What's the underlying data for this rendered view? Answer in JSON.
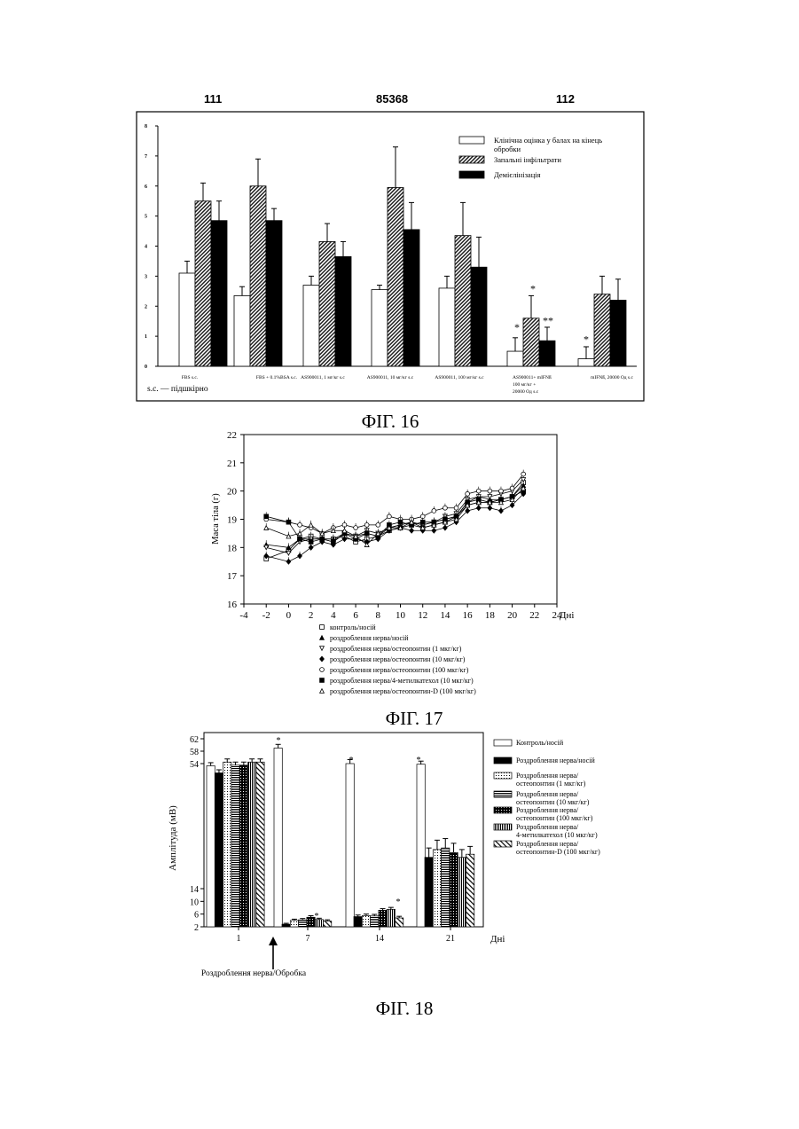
{
  "header": {
    "left_page": "111",
    "center_number": "85368",
    "right_page": "112"
  },
  "colors": {
    "ink": "#000000",
    "background": "#ffffff"
  },
  "chart_data": [
    {
      "type": "bar",
      "figure_label": "ФІГ. 16",
      "categories": [
        "FBS s.c.",
        "FBS + 0.1%BSA s.c.",
        "AS900011, 1 мг/кг s.c",
        "AS900011, 10 мг/кг s.c",
        "AS900011, 100 мг/кг s.c",
        "AS900011+ mIFNß 100 мг/кг + 20000 Од s.c",
        "mIFNß, 20000 Од s.c"
      ],
      "series": [
        {
          "name": "Клінічна оцінка у балах на кінець обробки",
          "pattern": "white",
          "values": [
            3.1,
            2.35,
            2.7,
            2.55,
            2.6,
            0.5,
            0.25
          ],
          "errors": [
            0.4,
            0.3,
            0.3,
            0.15,
            0.4,
            0.45,
            0.4
          ]
        },
        {
          "name": "Запальні інфільтрати",
          "pattern": "hatched",
          "values": [
            5.5,
            6.0,
            4.15,
            5.95,
            4.35,
            1.6,
            2.4
          ],
          "errors": [
            0.6,
            0.9,
            0.6,
            1.35,
            1.1,
            0.75,
            0.6
          ]
        },
        {
          "name": "Демієлінізація",
          "pattern": "black",
          "values": [
            4.85,
            4.85,
            3.65,
            4.55,
            3.3,
            0.85,
            2.2
          ],
          "errors": [
            0.65,
            0.4,
            0.5,
            0.9,
            1.0,
            0.45,
            0.7
          ]
        }
      ],
      "ylim": [
        0,
        8
      ],
      "yticks": [
        "0",
        "1",
        "2",
        "3",
        "4",
        "5",
        "6",
        "7",
        "8"
      ],
      "annotations": [
        "*",
        "*",
        "**",
        "*"
      ],
      "footnote": "s.c. — підшкірно",
      "legend_position": "top-right"
    },
    {
      "type": "line",
      "figure_label": "ФІГ. 17",
      "ylabel": "Маса тіла (г)",
      "xlabel": "Дні",
      "xlim": [
        -4,
        24
      ],
      "ylim": [
        16,
        22
      ],
      "xticks": [
        "-4",
        "-2",
        "0",
        "2",
        "4",
        "6",
        "8",
        "10",
        "12",
        "14",
        "16",
        "18",
        "20",
        "22",
        "24"
      ],
      "yticks": [
        "16",
        "17",
        "18",
        "19",
        "20",
        "21",
        "22"
      ],
      "x": [
        -2,
        0,
        1,
        2,
        3,
        4,
        5,
        6,
        7,
        8,
        9,
        10,
        11,
        12,
        13,
        14,
        15,
        16,
        17,
        18,
        19,
        20,
        21
      ],
      "series": [
        {
          "name": "контроль/носій",
          "marker": "open-square",
          "values": [
            17.6,
            17.9,
            18.3,
            18.4,
            18.3,
            18.3,
            18.4,
            18.2,
            18.3,
            18.4,
            18.6,
            18.7,
            18.8,
            18.7,
            18.8,
            18.9,
            19.1,
            19.5,
            19.6,
            19.6,
            19.7,
            19.8,
            20.3
          ]
        },
        {
          "name": "роздроблення нерва/носій",
          "marker": "filled-triangle",
          "values": [
            18.1,
            18.0,
            18.3,
            18.3,
            18.3,
            18.3,
            18.5,
            18.4,
            18.5,
            18.4,
            18.7,
            18.8,
            18.9,
            18.8,
            18.9,
            19.0,
            19.1,
            19.6,
            19.8,
            19.7,
            19.7,
            19.8,
            20.2
          ]
        },
        {
          "name": "роздроблення нерва/остеопонтин (1 мкг/кг)",
          "marker": "open-triangle-down",
          "values": [
            18.0,
            17.8,
            18.2,
            18.3,
            18.3,
            18.2,
            18.5,
            18.4,
            18.6,
            18.5,
            18.7,
            18.8,
            18.9,
            18.8,
            18.9,
            19.1,
            19.2,
            19.7,
            19.8,
            19.8,
            19.9,
            20.0,
            20.4
          ]
        },
        {
          "name": "роздроблення нерва/остеопонтин (10 мкг/кг)",
          "marker": "filled-diamond",
          "values": [
            17.7,
            17.5,
            17.7,
            18.0,
            18.2,
            18.1,
            18.3,
            18.3,
            18.2,
            18.3,
            18.6,
            18.7,
            18.6,
            18.6,
            18.6,
            18.7,
            18.9,
            19.3,
            19.4,
            19.4,
            19.3,
            19.5,
            19.9
          ]
        },
        {
          "name": "роздроблення нерва/остеопонтин (100 мкг/кг)",
          "marker": "open-circle",
          "values": [
            19.0,
            18.9,
            18.8,
            18.7,
            18.5,
            18.7,
            18.8,
            18.7,
            18.8,
            18.8,
            19.1,
            19.0,
            19.0,
            19.1,
            19.3,
            19.4,
            19.4,
            19.9,
            20.0,
            20.0,
            20.0,
            20.1,
            20.6
          ]
        },
        {
          "name": "роздроблення нерва/4-метилкатехол (10 мкг/кг)",
          "marker": "filled-square",
          "values": [
            19.1,
            18.9,
            18.3,
            18.2,
            18.3,
            18.2,
            18.5,
            18.3,
            18.5,
            18.4,
            18.8,
            18.9,
            18.8,
            18.9,
            18.9,
            19.0,
            19.1,
            19.6,
            19.7,
            19.6,
            19.7,
            19.8,
            20.0
          ]
        },
        {
          "name": "роздроблення нерва/остеопонтин-D (100 мкг/кг)",
          "marker": "open-triangle",
          "values": [
            18.7,
            18.4,
            18.5,
            18.8,
            18.5,
            18.6,
            18.6,
            18.4,
            18.1,
            18.5,
            18.7,
            18.7,
            18.9,
            18.7,
            18.8,
            18.9,
            19.0,
            19.5,
            19.6,
            19.6,
            19.6,
            19.7,
            20.1
          ]
        }
      ]
    },
    {
      "type": "bar",
      "figure_label": "ФІГ. 18",
      "ylabel": "Амплітуда (мВ)",
      "xlabel": "Дні",
      "categories": [
        "1",
        "7",
        "14",
        "21"
      ],
      "yticks": [
        "2",
        "6",
        "10",
        "14",
        "54",
        "58",
        "62"
      ],
      "ylim": [
        2,
        62
      ],
      "series": [
        {
          "name": "Контроль/носій",
          "pattern": "white",
          "values": [
            53.3,
            59.0,
            54.0,
            53.8
          ],
          "errors": [
            1.0,
            1.2,
            1.3,
            1.0
          ]
        },
        {
          "name": "Роздроблення нерва/носій",
          "pattern": "black",
          "values": [
            51.0,
            2.8,
            5.2,
            24.0
          ],
          "errors": [
            1.0,
            0.3,
            0.5,
            3.0
          ]
        },
        {
          "name": "Роздроблення нерва/ остеопонтин (1 мкг/кг)",
          "pattern": "dotted",
          "values": [
            54.5,
            4.0,
            5.5,
            26.5
          ],
          "errors": [
            1.0,
            0.4,
            0.5,
            3.0
          ]
        },
        {
          "name": "Роздроблення нерва/ остеопонтин (10 мкг/кг)",
          "pattern": "horizontal-lines",
          "values": [
            53.5,
            4.2,
            5.4,
            27.0
          ],
          "errors": [
            1.0,
            0.4,
            0.5,
            3.0
          ]
        },
        {
          "name": "Роздроблення нерва/ остеопонтин (100 мкг/кг)",
          "pattern": "crosshatch",
          "values": [
            53.5,
            5.0,
            7.2,
            25.5
          ],
          "errors": [
            1.0,
            0.5,
            0.5,
            3.0
          ]
        },
        {
          "name": "Роздроблення нерва/ 4-метилкатехол (10 мкг/кг)",
          "pattern": "vertical-lines",
          "values": [
            54.5,
            4.3,
            7.5,
            24.0
          ],
          "errors": [
            1.0,
            0.4,
            0.6,
            2.5
          ]
        },
        {
          "name": "Роздроблення нерва/ остеопонтин-D (100 мкг/кг)",
          "pattern": "diagonal",
          "values": [
            54.5,
            3.8,
            4.8,
            25.0
          ],
          "errors": [
            1.0,
            0.4,
            0.5,
            2.5
          ]
        }
      ],
      "annotations": [
        "*",
        "*",
        "*",
        "*",
        "*"
      ],
      "arrow_label": "Роздроблення нерва/Обробка",
      "legend_position": "right"
    }
  ]
}
